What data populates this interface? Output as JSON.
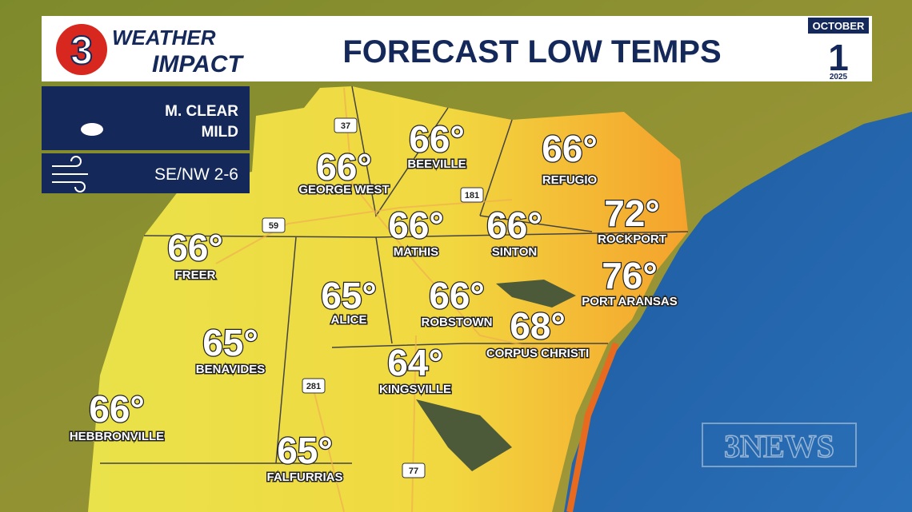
{
  "header": {
    "logo_number": "3",
    "logo_line1": "WEATHER",
    "logo_line2": "IMPACT",
    "title": "FORECAST LOW TEMPS",
    "date": {
      "month": "OCTOBER",
      "day": "1",
      "year": "2025"
    }
  },
  "conditions": {
    "sky_line1": "M. CLEAR",
    "sky_line2": "MILD",
    "wind": "SE/NW 2-6"
  },
  "cities": [
    {
      "temp": "66°",
      "name": "GEORGE WEST"
    },
    {
      "temp": "66°",
      "name": "BEEVILLE"
    },
    {
      "temp": "66°",
      "name": "REFUGIO"
    },
    {
      "temp": "66°",
      "name": "MATHIS"
    },
    {
      "temp": "66°",
      "name": "SINTON"
    },
    {
      "temp": "72°",
      "name": "ROCKPORT"
    },
    {
      "temp": "76°",
      "name": "PORT ARANSAS"
    },
    {
      "temp": "66°",
      "name": "FREER"
    },
    {
      "temp": "65°",
      "name": "ALICE"
    },
    {
      "temp": "66°",
      "name": "ROBSTOWN"
    },
    {
      "temp": "68°",
      "name": "CORPUS CHRISTI"
    },
    {
      "temp": "65°",
      "name": "BENAVIDES"
    },
    {
      "temp": "64°",
      "name": "KINGSVILLE"
    },
    {
      "temp": "66°",
      "name": "HEBBRONVILLE"
    },
    {
      "temp": "65°",
      "name": "FALFURRIAS"
    }
  ],
  "highways": [
    "37",
    "181",
    "59",
    "281",
    "77"
  ],
  "watermark": "3NEWS"
}
